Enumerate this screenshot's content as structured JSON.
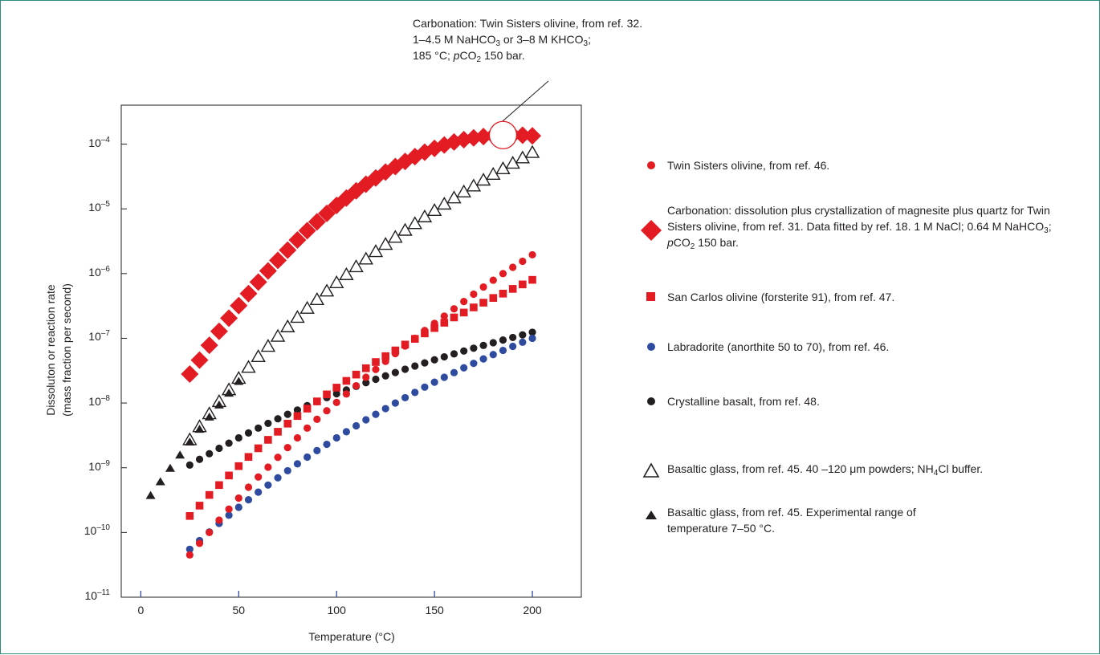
{
  "chart_data": {
    "type": "scatter",
    "title": "",
    "xlabel": "Temperature (°C)",
    "ylabel_line1": "Dissoluton or reaction rate",
    "ylabel_line2": "(mass fraction per second)",
    "xlim": [
      -10,
      225
    ],
    "ylim": [
      1e-11,
      0.0004
    ],
    "yscale": "log",
    "grid": false,
    "legend_position": "right",
    "x_ticks": [
      0,
      50,
      100,
      150,
      200
    ],
    "y_ticks": [
      {
        "base": "10",
        "exp": "–11"
      },
      {
        "base": "10",
        "exp": "–10"
      },
      {
        "base": "10",
        "exp": "–9"
      },
      {
        "base": "10",
        "exp": "–8"
      },
      {
        "base": "10",
        "exp": "–7"
      },
      {
        "base": "10",
        "exp": "–6"
      },
      {
        "base": "10",
        "exp": "–5"
      },
      {
        "base": "10",
        "exp": "–4"
      }
    ],
    "series": [
      {
        "marker": "circle",
        "color": "#e31b23",
        "label_parts": [
          "Twin Sisters olivine, from ref. 46."
        ],
        "x_start": 25,
        "x_step": 5,
        "values": [
          4.5e-11,
          6.8e-11,
          1e-10,
          1.55e-10,
          2.3e-10,
          3.4e-10,
          5e-10,
          7.2e-10,
          1.02e-09,
          1.45e-09,
          2.05e-09,
          2.9e-09,
          4.1e-09,
          5.6e-09,
          7.6e-09,
          1.02e-08,
          1.38e-08,
          1.85e-08,
          2.5e-08,
          3.3e-08,
          4.4e-08,
          5.8e-08,
          7.6e-08,
          1e-07,
          1.32e-07,
          1.7e-07,
          2.2e-07,
          2.85e-07,
          3.7e-07,
          4.8e-07,
          6.2e-07,
          7.9e-07,
          1e-06,
          1.25e-06,
          1.55e-06,
          1.95e-06
        ]
      },
      {
        "marker": "diamond",
        "color": "#e31b23",
        "label_parts": [
          "Carbonation: dissolution plus crystallization of magnesite plus quartz for Twin Sisters olivine, from ref. 31. Data fitted by ref. 18. 1 M NaCl; 0.64 M NaHCO",
          "3",
          "; ",
          "p",
          "CO",
          "2",
          " 150 bar."
        ],
        "x_start": 25,
        "x_step": 5,
        "values": [
          2.8e-08,
          4.6e-08,
          7.8e-08,
          1.28e-07,
          2.05e-07,
          3.2e-07,
          4.9e-07,
          7.4e-07,
          1.1e-06,
          1.6e-06,
          2.3e-06,
          3.3e-06,
          4.6e-06,
          6.3e-06,
          8.5e-06,
          1.13e-05,
          1.47e-05,
          1.9e-05,
          2.4e-05,
          3e-05,
          3.7e-05,
          4.5e-05,
          5.4e-05,
          6.4e-05,
          7.5e-05,
          8.6e-05,
          9.7e-05,
          0.000108,
          0.000117,
          0.000125,
          0.000131,
          0.000135,
          0.000137,
          0.000138,
          0.000137,
          0.000134
        ]
      },
      {
        "marker": "square",
        "color": "#e31b23",
        "label_parts": [
          "San Carlos olivine (forsterite 91), from ref. 47."
        ],
        "x_start": 25,
        "x_step": 5,
        "values": [
          1.8e-10,
          2.6e-10,
          3.8e-10,
          5.4e-10,
          7.6e-10,
          1.06e-09,
          1.47e-09,
          2e-09,
          2.7e-09,
          3.6e-09,
          4.8e-09,
          6.3e-09,
          8.2e-09,
          1.06e-08,
          1.36e-08,
          1.73e-08,
          2.2e-08,
          2.75e-08,
          3.45e-08,
          4.3e-08,
          5.3e-08,
          6.5e-08,
          8e-08,
          9.8e-08,
          1.19e-07,
          1.44e-07,
          1.74e-07,
          2.1e-07,
          2.5e-07,
          3e-07,
          3.55e-07,
          4.2e-07,
          4.9e-07,
          5.8e-07,
          6.8e-07,
          8e-07
        ]
      },
      {
        "marker": "circle",
        "color": "#2e4ba0",
        "label_parts": [
          "Labradorite (anorthite 50 to 70), from ref. 46."
        ],
        "x_start": 25,
        "x_step": 5,
        "values": [
          5.5e-11,
          7.5e-11,
          1.02e-10,
          1.38e-10,
          1.85e-10,
          2.45e-10,
          3.2e-10,
          4.2e-10,
          5.4e-10,
          7e-10,
          9e-10,
          1.15e-09,
          1.46e-09,
          1.84e-09,
          2.3e-09,
          2.9e-09,
          3.6e-09,
          4.45e-09,
          5.5e-09,
          6.7e-09,
          8.2e-09,
          1e-08,
          1.21e-08,
          1.46e-08,
          1.76e-08,
          2.1e-08,
          2.5e-08,
          2.95e-08,
          3.5e-08,
          4.1e-08,
          4.8e-08,
          5.6e-08,
          6.5e-08,
          7.5e-08,
          8.7e-08,
          1e-07
        ]
      },
      {
        "marker": "circle",
        "color": "#231f20",
        "label_parts": [
          "Crystalline basalt, from ref. 48."
        ],
        "x_start": 25,
        "x_step": 5,
        "values": [
          1.1e-09,
          1.35e-09,
          1.65e-09,
          2e-09,
          2.4e-09,
          2.9e-09,
          3.45e-09,
          4.1e-09,
          4.85e-09,
          5.7e-09,
          6.7e-09,
          7.8e-09,
          9.1e-09,
          1.05e-08,
          1.21e-08,
          1.39e-08,
          1.59e-08,
          1.81e-08,
          2.06e-08,
          2.33e-08,
          2.63e-08,
          2.96e-08,
          3.33e-08,
          3.73e-08,
          4.17e-08,
          4.65e-08,
          5.17e-08,
          5.74e-08,
          6.36e-08,
          7.03e-08,
          7.76e-08,
          8.55e-08,
          9.4e-08,
          1.03e-07,
          1.13e-07,
          1.24e-07
        ]
      },
      {
        "marker": "triangle-open",
        "color": "#231f20",
        "label_parts": [
          "Basaltic glass, from ref. 45. 40 –120 μm powders; NH",
          "4",
          "Cl buffer."
        ],
        "x_start": 25,
        "x_step": 5,
        "values": [
          2.7e-09,
          4.3e-09,
          6.8e-09,
          1.05e-08,
          1.6e-08,
          2.4e-08,
          3.55e-08,
          5.2e-08,
          7.5e-08,
          1.07e-07,
          1.5e-07,
          2.1e-07,
          2.9e-07,
          3.95e-07,
          5.35e-07,
          7.2e-07,
          9.6e-07,
          1.27e-06,
          1.67e-06,
          2.18e-06,
          2.82e-06,
          3.63e-06,
          4.65e-06,
          5.9e-06,
          7.5e-06,
          9.4e-06,
          1.18e-05,
          1.47e-05,
          1.82e-05,
          2.25e-05,
          2.77e-05,
          3.4e-05,
          4.15e-05,
          5.05e-05,
          6.1e-05,
          7.4e-05
        ]
      },
      {
        "marker": "triangle-filled",
        "color": "#231f20",
        "label_parts": [
          "Basaltic glass, from ref. 45.  Experimental range of temperature 7–50 °C."
        ],
        "x_start": 5,
        "x_step": 5,
        "values": [
          3.8e-10,
          6.2e-10,
          1e-09,
          1.6e-09,
          2.55e-09,
          4e-09,
          6.2e-09,
          9.5e-09,
          1.45e-08,
          2.2e-08
        ]
      }
    ],
    "annotation": {
      "line1": "Carbonation: Twin Sisters olivine, from ref. 32.",
      "line2_parts": [
        "1–4.5 M NaHCO",
        "3",
        " or 3–8 M KHCO",
        "3",
        ";"
      ],
      "line3_parts": [
        "185 °C; ",
        "p",
        "CO",
        "2",
        " 150 bar."
      ],
      "circle_x": 185,
      "circle_y": 0.000138,
      "circle_color": "#e31b23"
    }
  }
}
